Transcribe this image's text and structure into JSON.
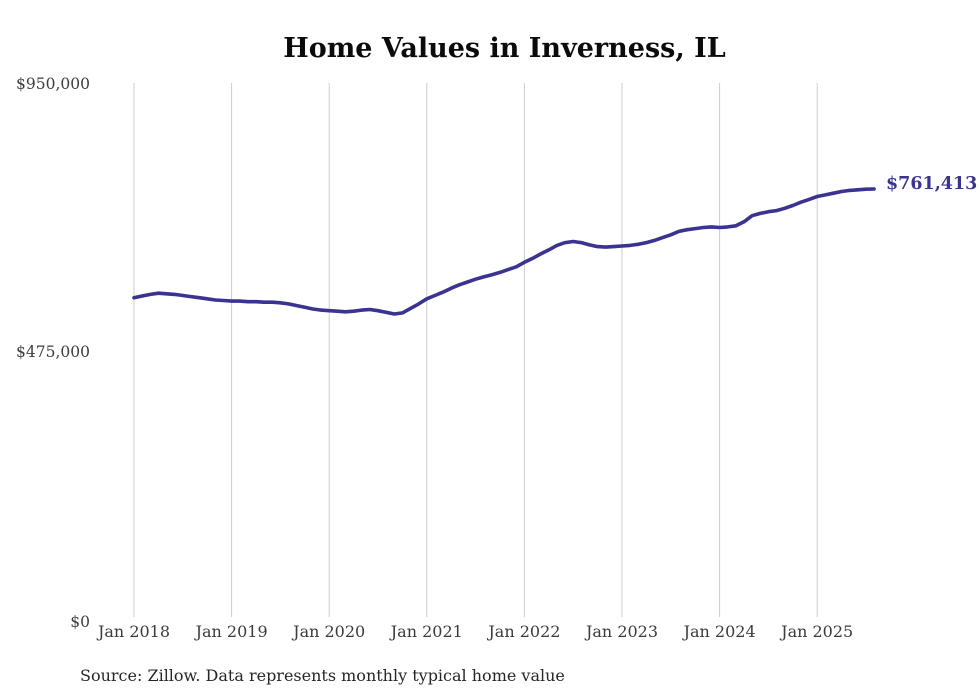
{
  "title": "Home Values in Inverness, IL",
  "latest_value_label": "$761,413",
  "source_note": "Source: Zillow. Data represents monthly typical home value",
  "colors": {
    "line": "#3a3390",
    "grid": "#cccccc",
    "title_text": "#0b0b0b",
    "tick_text": "#3b3b3b",
    "source_text": "#262626",
    "background": "#ffffff"
  },
  "chart_data": {
    "type": "line",
    "title": "Home Values in Inverness, IL",
    "xlabel": "",
    "ylabel": "",
    "ylim": [
      0,
      950000
    ],
    "grid": "vertical-only",
    "legend": "none",
    "y_tick_labels": [
      "$950,000",
      "$475,000",
      "$0"
    ],
    "y_tick_values": [
      950000,
      475000,
      0
    ],
    "x_tick_labels": [
      "Jan 2018",
      "Jan 2019",
      "Jan 2020",
      "Jan 2021",
      "Jan 2022",
      "Jan 2023",
      "Jan 2024",
      "Jan 2025"
    ],
    "final_value": 761413,
    "final_value_label": "$761,413",
    "series": [
      {
        "name": "Monthly typical home value",
        "color": "#3a3390",
        "x": [
          "2018-01",
          "2018-02",
          "2018-03",
          "2018-04",
          "2018-05",
          "2018-06",
          "2018-07",
          "2018-08",
          "2018-09",
          "2018-10",
          "2018-11",
          "2018-12",
          "2019-01",
          "2019-02",
          "2019-03",
          "2019-04",
          "2019-05",
          "2019-06",
          "2019-07",
          "2019-08",
          "2019-09",
          "2019-10",
          "2019-11",
          "2019-12",
          "2020-01",
          "2020-02",
          "2020-03",
          "2020-04",
          "2020-05",
          "2020-06",
          "2020-07",
          "2020-08",
          "2020-09",
          "2020-10",
          "2020-11",
          "2020-12",
          "2021-01",
          "2021-02",
          "2021-03",
          "2021-04",
          "2021-05",
          "2021-06",
          "2021-07",
          "2021-08",
          "2021-09",
          "2021-10",
          "2021-11",
          "2021-12",
          "2022-01",
          "2022-02",
          "2022-03",
          "2022-04",
          "2022-05",
          "2022-06",
          "2022-07",
          "2022-08",
          "2022-09",
          "2022-10",
          "2022-11",
          "2022-12",
          "2023-01",
          "2023-02",
          "2023-03",
          "2023-04",
          "2023-05",
          "2023-06",
          "2023-07",
          "2023-08",
          "2023-09",
          "2023-10",
          "2023-11",
          "2023-12",
          "2024-01",
          "2024-02",
          "2024-03",
          "2024-04",
          "2024-05",
          "2024-06",
          "2024-07",
          "2024-08",
          "2024-09",
          "2024-10",
          "2024-11",
          "2024-12",
          "2025-01",
          "2025-02",
          "2025-03",
          "2025-04",
          "2025-05",
          "2025-06",
          "2025-07",
          "2025-08"
        ],
        "values": [
          568000,
          571000,
          574000,
          576000,
          575000,
          574000,
          572000,
          570000,
          568000,
          566000,
          564000,
          563000,
          562000,
          562000,
          561000,
          561000,
          560000,
          560000,
          559000,
          557000,
          554000,
          551000,
          548000,
          546000,
          545000,
          544000,
          543000,
          544000,
          546000,
          547000,
          545000,
          542000,
          539000,
          541000,
          549000,
          557000,
          566000,
          572000,
          578000,
          585000,
          591000,
          596000,
          601000,
          605000,
          609000,
          613000,
          618000,
          623000,
          631000,
          638000,
          646000,
          653000,
          661000,
          666000,
          668000,
          666000,
          662000,
          659000,
          658000,
          659000,
          660000,
          661000,
          663000,
          666000,
          670000,
          675000,
          680000,
          686000,
          689000,
          691000,
          693000,
          694000,
          693000,
          694000,
          696000,
          703000,
          714000,
          718000,
          721000,
          723000,
          727000,
          732000,
          738000,
          743000,
          748000,
          751000,
          754000,
          757000,
          759000,
          760000,
          761000,
          761413
        ]
      }
    ]
  }
}
